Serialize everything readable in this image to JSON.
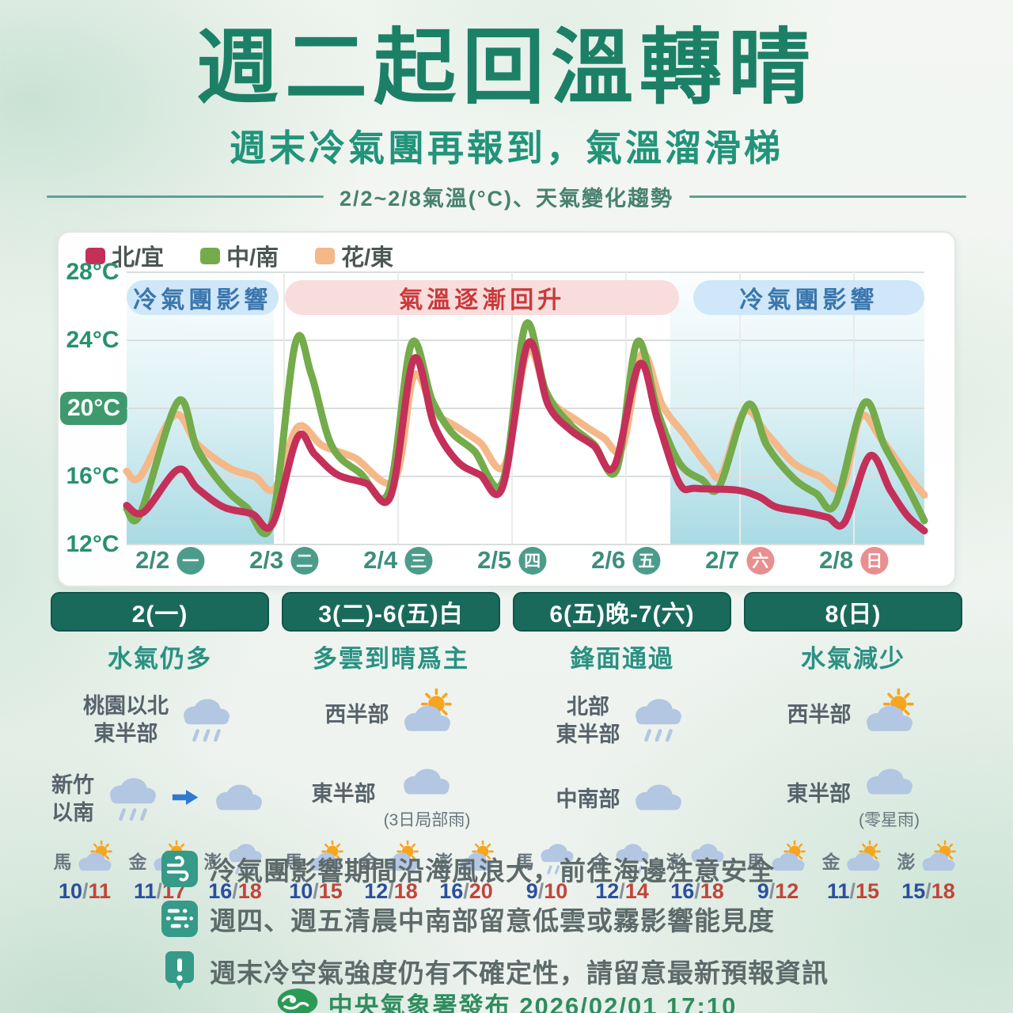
{
  "header": {
    "title": "週二起回溫轉晴",
    "subtitle": "週末冷氣團再報到，氣溫溜滑梯",
    "caption": "2/2~2/8氣溫(°C)、天氣變化趨勢"
  },
  "chart_data": {
    "type": "line",
    "title": "2/2~2/8氣溫(°C)、天氣變化趨勢",
    "xlabel": "日期",
    "ylabel": "氣溫(°C)",
    "ylim": [
      12,
      28
    ],
    "yticks": [
      28,
      24,
      20,
      16,
      12
    ],
    "highlight_ytick": 20,
    "grid": true,
    "legend_position": "top-left",
    "days": [
      {
        "date": "2/2",
        "weekday": "一",
        "weekend": false
      },
      {
        "date": "2/3",
        "weekday": "二",
        "weekend": false
      },
      {
        "date": "2/4",
        "weekday": "三",
        "weekend": false
      },
      {
        "date": "2/5",
        "weekday": "四",
        "weekend": false
      },
      {
        "date": "2/6",
        "weekday": "五",
        "weekend": false
      },
      {
        "date": "2/7",
        "weekday": "六",
        "weekend": true
      },
      {
        "date": "2/8",
        "weekday": "日",
        "weekend": true
      }
    ],
    "legend": [
      {
        "key": "north-yilan",
        "name": "北/宜",
        "color": "#c43059"
      },
      {
        "key": "central-south",
        "name": "中/南",
        "color": "#74ab4b"
      },
      {
        "key": "hualien-taitung",
        "name": "花/東",
        "color": "#f5b888"
      }
    ],
    "banners": [
      {
        "label": "冷氣團影響",
        "type": "cold",
        "from": 0,
        "to": 1.33
      },
      {
        "label": "氣溫逐漸回升",
        "type": "warm",
        "from": 1.39,
        "to": 4.85
      },
      {
        "label": "冷氣團影響",
        "type": "cold",
        "from": 4.97,
        "to": 7
      }
    ],
    "cold_regions": [
      {
        "from": 0,
        "to": 1.29
      },
      {
        "from": 4.77,
        "to": 7
      }
    ],
    "series": [
      {
        "key": "north-yilan",
        "name": "北/宜",
        "color": "#c43059",
        "points": [
          [
            0,
            14.3
          ],
          [
            0.15,
            13.9
          ],
          [
            0.45,
            16.4
          ],
          [
            0.62,
            15.3
          ],
          [
            0.85,
            14.2
          ],
          [
            1.1,
            13.8
          ],
          [
            1.28,
            13.2
          ],
          [
            1.5,
            18.3
          ],
          [
            1.65,
            17.3
          ],
          [
            1.85,
            16.1
          ],
          [
            2.1,
            15.6
          ],
          [
            2.32,
            14.9
          ],
          [
            2.52,
            22.9
          ],
          [
            2.7,
            19.0
          ],
          [
            2.9,
            16.9
          ],
          [
            3.1,
            16.1
          ],
          [
            3.3,
            15.4
          ],
          [
            3.52,
            23.8
          ],
          [
            3.7,
            20.2
          ],
          [
            3.9,
            18.7
          ],
          [
            4.1,
            17.8
          ],
          [
            4.28,
            16.6
          ],
          [
            4.5,
            22.6
          ],
          [
            4.66,
            19.3
          ],
          [
            4.85,
            15.6
          ],
          [
            5.0,
            15.3
          ],
          [
            5.35,
            15.2
          ],
          [
            5.55,
            14.8
          ],
          [
            5.7,
            14.2
          ],
          [
            5.95,
            13.9
          ],
          [
            6.15,
            13.6
          ],
          [
            6.3,
            13.3
          ],
          [
            6.52,
            17.2
          ],
          [
            6.7,
            15.2
          ],
          [
            6.85,
            13.7
          ],
          [
            7,
            12.8
          ]
        ]
      },
      {
        "key": "central-south",
        "name": "中/南",
        "color": "#74ab4b",
        "points": [
          [
            0,
            14.1
          ],
          [
            0.12,
            13.8
          ],
          [
            0.45,
            20.4
          ],
          [
            0.62,
            17.6
          ],
          [
            0.85,
            15.4
          ],
          [
            1.05,
            14.2
          ],
          [
            1.27,
            13.2
          ],
          [
            1.48,
            23.8
          ],
          [
            1.62,
            22.0
          ],
          [
            1.8,
            17.8
          ],
          [
            2.05,
            16.2
          ],
          [
            2.3,
            15.1
          ],
          [
            2.5,
            23.8
          ],
          [
            2.68,
            20.5
          ],
          [
            2.85,
            18.6
          ],
          [
            3.05,
            17.5
          ],
          [
            3.3,
            15.7
          ],
          [
            3.5,
            24.9
          ],
          [
            3.68,
            21.0
          ],
          [
            3.9,
            19.0
          ],
          [
            4.1,
            17.9
          ],
          [
            4.3,
            16.4
          ],
          [
            4.48,
            23.9
          ],
          [
            4.66,
            19.8
          ],
          [
            4.85,
            16.8
          ],
          [
            5.05,
            15.8
          ],
          [
            5.2,
            15.4
          ],
          [
            5.45,
            20.2
          ],
          [
            5.62,
            17.8
          ],
          [
            5.85,
            15.9
          ],
          [
            6.05,
            15.0
          ],
          [
            6.22,
            14.4
          ],
          [
            6.47,
            20.3
          ],
          [
            6.65,
            17.8
          ],
          [
            6.85,
            15.4
          ],
          [
            7,
            13.4
          ]
        ]
      },
      {
        "key": "hualien-taitung",
        "name": "花/東",
        "color": "#f5b888",
        "points": [
          [
            0,
            16.3
          ],
          [
            0.12,
            16.0
          ],
          [
            0.42,
            19.6
          ],
          [
            0.62,
            17.9
          ],
          [
            0.9,
            16.5
          ],
          [
            1.12,
            16.0
          ],
          [
            1.3,
            15.3
          ],
          [
            1.5,
            18.9
          ],
          [
            1.72,
            17.8
          ],
          [
            2.0,
            17.1
          ],
          [
            2.35,
            15.8
          ],
          [
            2.52,
            21.9
          ],
          [
            2.7,
            19.8
          ],
          [
            2.9,
            18.9
          ],
          [
            3.1,
            18.0
          ],
          [
            3.32,
            16.7
          ],
          [
            3.52,
            23.4
          ],
          [
            3.7,
            20.6
          ],
          [
            3.95,
            19.3
          ],
          [
            4.18,
            18.3
          ],
          [
            4.35,
            17.7
          ],
          [
            4.52,
            23.2
          ],
          [
            4.7,
            20.2
          ],
          [
            4.9,
            18.4
          ],
          [
            5.1,
            16.6
          ],
          [
            5.22,
            16.1
          ],
          [
            5.42,
            19.8
          ],
          [
            5.62,
            18.5
          ],
          [
            5.85,
            16.8
          ],
          [
            6.08,
            16.0
          ],
          [
            6.28,
            15.4
          ],
          [
            6.44,
            19.5
          ],
          [
            6.62,
            18.2
          ],
          [
            6.85,
            16.1
          ],
          [
            7,
            14.9
          ]
        ]
      }
    ]
  },
  "sections": [
    {
      "header": "2(一)",
      "summary": "水氣仍多",
      "rows": [
        {
          "area": "桃園以北\n東半部",
          "icons": [
            "rain"
          ]
        },
        {
          "area": "新竹以南",
          "icons": [
            "rain",
            "arrow",
            "cloud"
          ]
        }
      ],
      "islands": [
        {
          "name": "馬",
          "icon": "suncloud",
          "low": "10",
          "high": "11"
        },
        {
          "name": "金",
          "icon": "suncloud",
          "low": "11",
          "high": "17"
        },
        {
          "name": "澎",
          "icon": "rain",
          "low": "16",
          "high": "18"
        }
      ]
    },
    {
      "header": "3(二)-6(五)白",
      "summary": "多雲到晴爲主",
      "rows": [
        {
          "area": "西半部",
          "icons": [
            "suncloud"
          ]
        },
        {
          "area": "東半部",
          "icons": [
            "cloud"
          ],
          "note": "(3日局部雨)"
        }
      ],
      "islands": [
        {
          "name": "馬",
          "icon": "suncloud",
          "low": "10",
          "high": "15"
        },
        {
          "name": "金",
          "icon": "suncloud",
          "low": "12",
          "high": "18"
        },
        {
          "name": "澎",
          "icon": "suncloud",
          "low": "16",
          "high": "20"
        }
      ]
    },
    {
      "header": "6(五)晚-7(六)",
      "summary": "鋒面通過",
      "rows": [
        {
          "area": "北部\n東半部",
          "icons": [
            "rain"
          ]
        },
        {
          "area": "中南部",
          "icons": [
            "cloud"
          ]
        }
      ],
      "islands": [
        {
          "name": "馬",
          "icon": "rain",
          "low": "9",
          "high": "10"
        },
        {
          "name": "金",
          "icon": "rain",
          "low": "12",
          "high": "14"
        },
        {
          "name": "澎",
          "icon": "rain",
          "low": "16",
          "high": "18"
        }
      ]
    },
    {
      "header": "8(日)",
      "summary": "水氣減少",
      "rows": [
        {
          "area": "西半部",
          "icons": [
            "suncloud"
          ]
        },
        {
          "area": "東半部",
          "icons": [
            "cloud"
          ],
          "note": "(零星雨)"
        }
      ],
      "islands": [
        {
          "name": "馬",
          "icon": "suncloud",
          "low": "9",
          "high": "12"
        },
        {
          "name": "金",
          "icon": "suncloud",
          "low": "11",
          "high": "15"
        },
        {
          "name": "澎",
          "icon": "suncloud",
          "low": "15",
          "high": "18"
        }
      ]
    }
  ],
  "notes": [
    {
      "icon": "wind",
      "text": "冷氣團影響期間沿海風浪大，前往海邊注意安全"
    },
    {
      "icon": "fog",
      "text": "週四、週五清晨中南部留意低雲或霧影響能見度"
    },
    {
      "icon": "alert",
      "text": "週末冷空氣強度仍有不確定性，請留意最新預報資訊"
    }
  ],
  "footer": {
    "source": "中央氣象署發布 2026/02/01 17:10"
  },
  "colors": {
    "title_green": "#1c8066",
    "header_bar": "#1a6a5b",
    "cold_banner_bg": "#cfe7f8",
    "warm_banner_bg": "#f9dcdc",
    "weekday_circle": "#4c9c8b",
    "weekend_circle": "#e88f8f",
    "temp_low": "#2c4f9c",
    "temp_high": "#c2453a"
  }
}
